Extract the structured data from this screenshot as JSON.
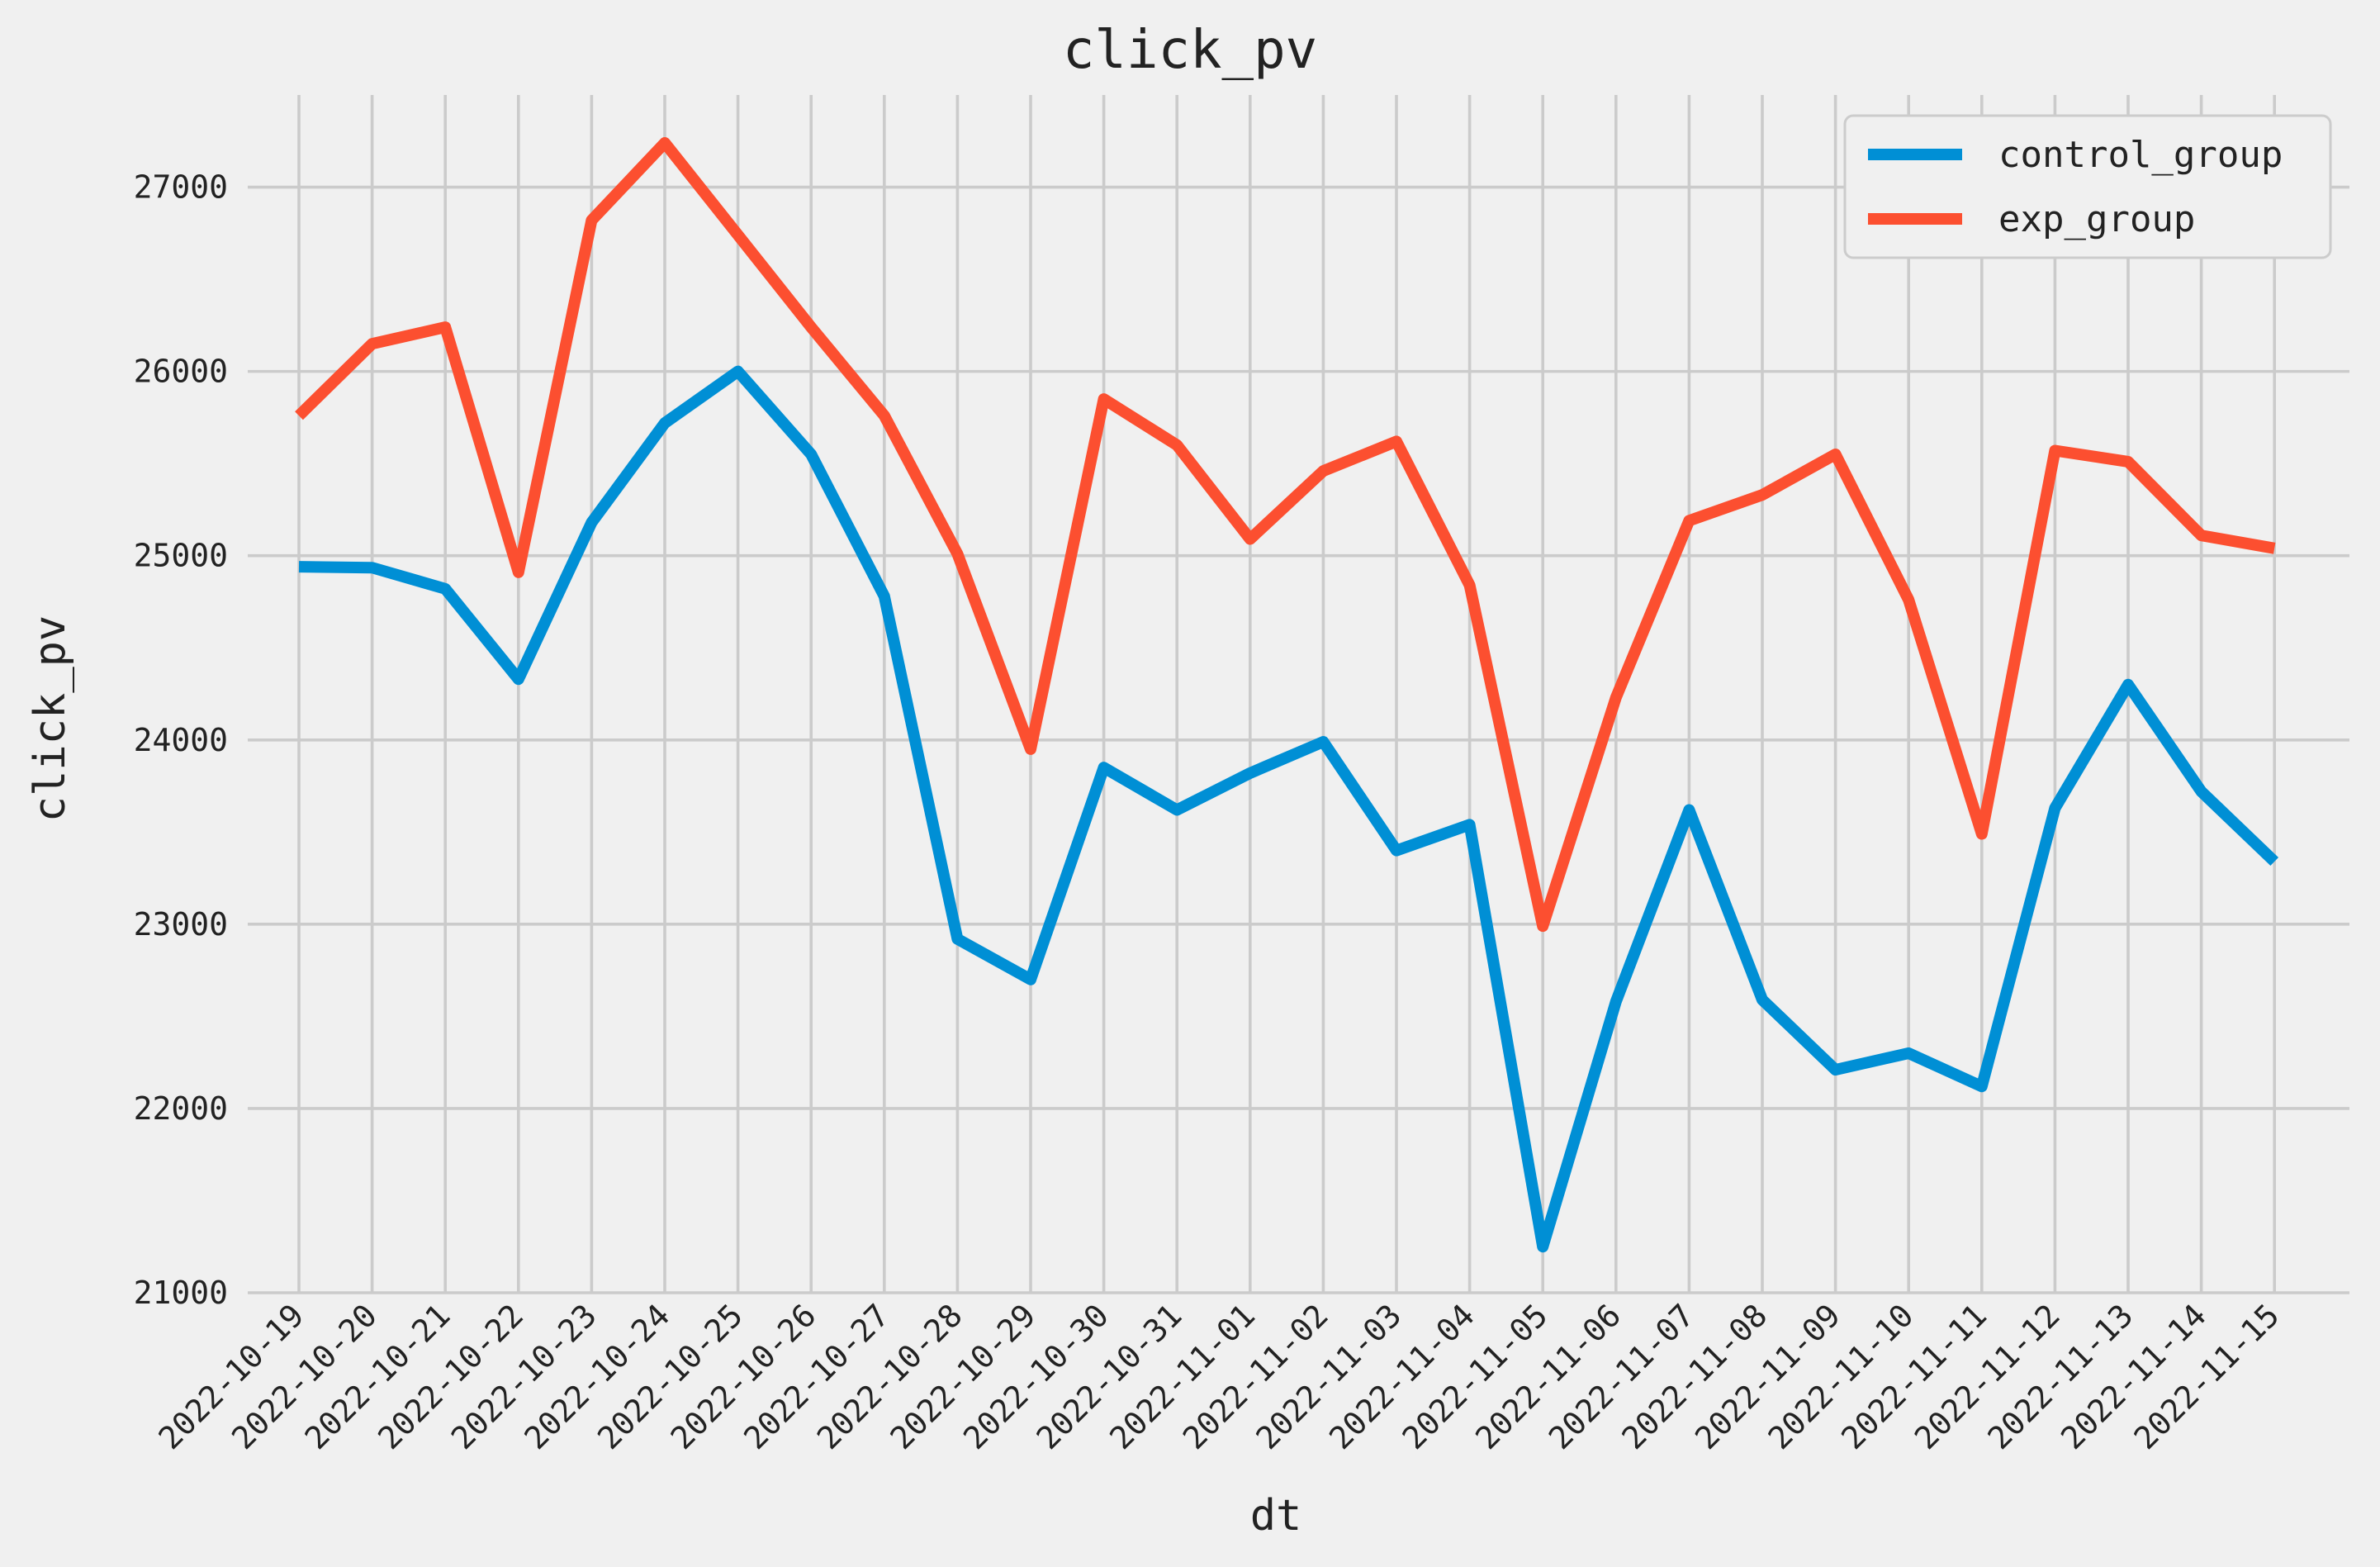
{
  "chart_data": {
    "type": "line",
    "title": "click_pv",
    "xlabel": "dt",
    "ylabel": "click_pv",
    "x": [
      "2022-10-19",
      "2022-10-20",
      "2022-10-21",
      "2022-10-22",
      "2022-10-23",
      "2022-10-24",
      "2022-10-25",
      "2022-10-26",
      "2022-10-27",
      "2022-10-28",
      "2022-10-29",
      "2022-10-30",
      "2022-10-31",
      "2022-11-01",
      "2022-11-02",
      "2022-11-03",
      "2022-11-04",
      "2022-11-05",
      "2022-11-06",
      "2022-11-07",
      "2022-11-08",
      "2022-11-09",
      "2022-11-10",
      "2022-11-11",
      "2022-11-12",
      "2022-11-13",
      "2022-11-14",
      "2022-11-15"
    ],
    "series": [
      {
        "name": "control_group",
        "color": "#008fd5",
        "values": [
          24940,
          24935,
          24820,
          24330,
          25180,
          25720,
          26000,
          25550,
          24780,
          22920,
          22700,
          23850,
          23620,
          23820,
          23990,
          23400,
          23540,
          21250,
          22580,
          23620,
          22590,
          22210,
          22300,
          22120,
          23630,
          24300,
          23720,
          23340
        ]
      },
      {
        "name": "exp_group",
        "color": "#fc4f30",
        "values": [
          25760,
          26150,
          26240,
          24910,
          26820,
          27240,
          26740,
          26240,
          25760,
          25010,
          23950,
          25850,
          25600,
          25090,
          25460,
          25620,
          24840,
          22990,
          24230,
          25190,
          25330,
          25550,
          24760,
          23490,
          25570,
          25510,
          25110,
          25040
        ]
      }
    ],
    "ylim": [
      21000,
      27500
    ],
    "yticks": [
      21000,
      22000,
      23000,
      24000,
      25000,
      26000,
      27000
    ],
    "grid": true,
    "legend_position": "top-right"
  }
}
